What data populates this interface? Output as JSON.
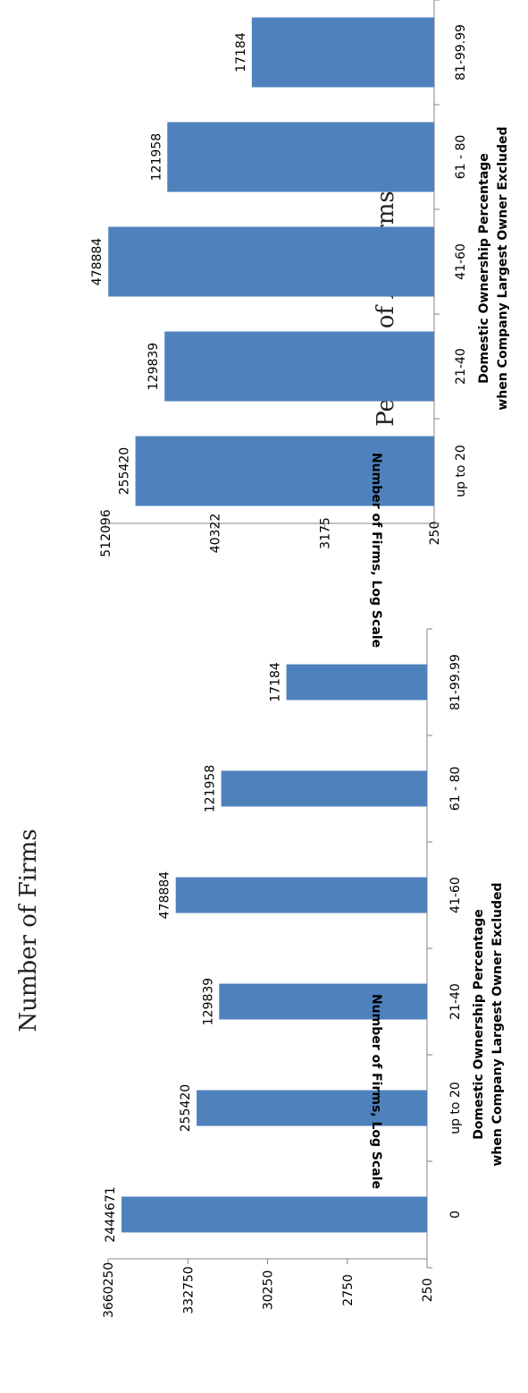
{
  "colors": {
    "bar": "#4f81bd",
    "axis": "#868686"
  },
  "chart_data": [
    {
      "type": "bar",
      "orientation": "rotated-90-clockwise",
      "title": "Number of Firms",
      "xlabel": [
        "Domestic Ownership Percentage",
        "when Company Largest Owner Excluded"
      ],
      "ylabel": "Number of Firms, Log Scale",
      "yscale": "log",
      "ylim": [
        250,
        3660250
      ],
      "yticks": [
        "250",
        "2750",
        "30250",
        "332750",
        "3660250"
      ],
      "categories": [
        "0",
        "up to 20",
        "21-40",
        "41-60",
        "61 - 80",
        "81-99.99"
      ],
      "values": [
        2444671,
        255420,
        129839,
        478884,
        121958,
        17184
      ],
      "data_labels": [
        "2444671",
        "255420",
        "129839",
        "478884",
        "121958",
        "17184"
      ],
      "grid": false,
      "legend": "none"
    },
    {
      "type": "bar",
      "orientation": "rotated-90-clockwise",
      "title": "Percent of All Firms",
      "xlabel": [
        "Domestic Ownership Percentage",
        "when Company Largest Owner Excluded"
      ],
      "ylabel": "Number of Firms, Log Scale",
      "yscale": "log",
      "ylim": [
        250,
        512096
      ],
      "yticks": [
        "250",
        "3175",
        "40322",
        "512096"
      ],
      "categories": [
        "up to 20",
        "21-40",
        "41-60",
        "61 - 80",
        "81-99.99"
      ],
      "values": [
        255420,
        129839,
        478884,
        121958,
        17184
      ],
      "data_labels": [
        "255420",
        "129839",
        "478884",
        "121958",
        "17184"
      ],
      "grid": false,
      "legend": "none"
    }
  ]
}
